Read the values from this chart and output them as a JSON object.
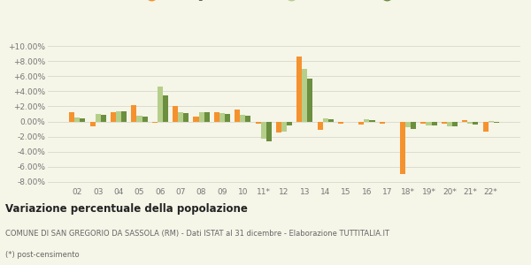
{
  "years": [
    "02",
    "03",
    "04",
    "05",
    "06",
    "07",
    "08",
    "09",
    "10",
    "11*",
    "12",
    "13",
    "14",
    "15",
    "16",
    "17",
    "18*",
    "19*",
    "20*",
    "21*",
    "22*"
  ],
  "san_gregorio": [
    1.2,
    -0.6,
    1.2,
    2.2,
    -0.2,
    2.1,
    0.7,
    1.2,
    1.6,
    -0.3,
    -1.5,
    8.6,
    -1.1,
    -0.3,
    -0.4,
    -0.3,
    -7.0,
    -0.3,
    -0.3,
    0.2,
    -1.4
  ],
  "provincia_rm": [
    0.5,
    1.0,
    1.3,
    0.8,
    4.6,
    1.2,
    1.2,
    1.1,
    0.9,
    -2.3,
    -1.4,
    7.0,
    0.4,
    0.0,
    0.3,
    0.0,
    -0.8,
    -0.5,
    -0.6,
    -0.3,
    0.1
  ],
  "lazio": [
    0.4,
    0.9,
    1.3,
    0.7,
    3.5,
    1.1,
    1.2,
    1.0,
    0.8,
    -2.6,
    -0.5,
    5.7,
    0.3,
    0.0,
    0.2,
    0.0,
    -1.0,
    -0.5,
    -0.6,
    -0.4,
    -0.2
  ],
  "color_san_gregorio": "#f5922e",
  "color_provincia": "#b5cf8a",
  "color_lazio": "#6b8f3e",
  "bar_width": 0.26,
  "ylim": [
    -8.5,
    10.5
  ],
  "yticks": [
    -8.0,
    -6.0,
    -4.0,
    -2.0,
    0.0,
    2.0,
    4.0,
    6.0,
    8.0,
    10.0
  ],
  "title": "Variazione percentuale della popolazione",
  "subtitle": "COMUNE DI SAN GREGORIO DA SASSOLA (RM) - Dati ISTAT al 31 dicembre - Elaborazione TUTTITALIA.IT",
  "footnote": "(*) post-censimento",
  "bg_color": "#f5f5e8",
  "legend_labels": [
    "San Gregorio da Sassola",
    "Provincia di RM",
    "Lazio"
  ]
}
